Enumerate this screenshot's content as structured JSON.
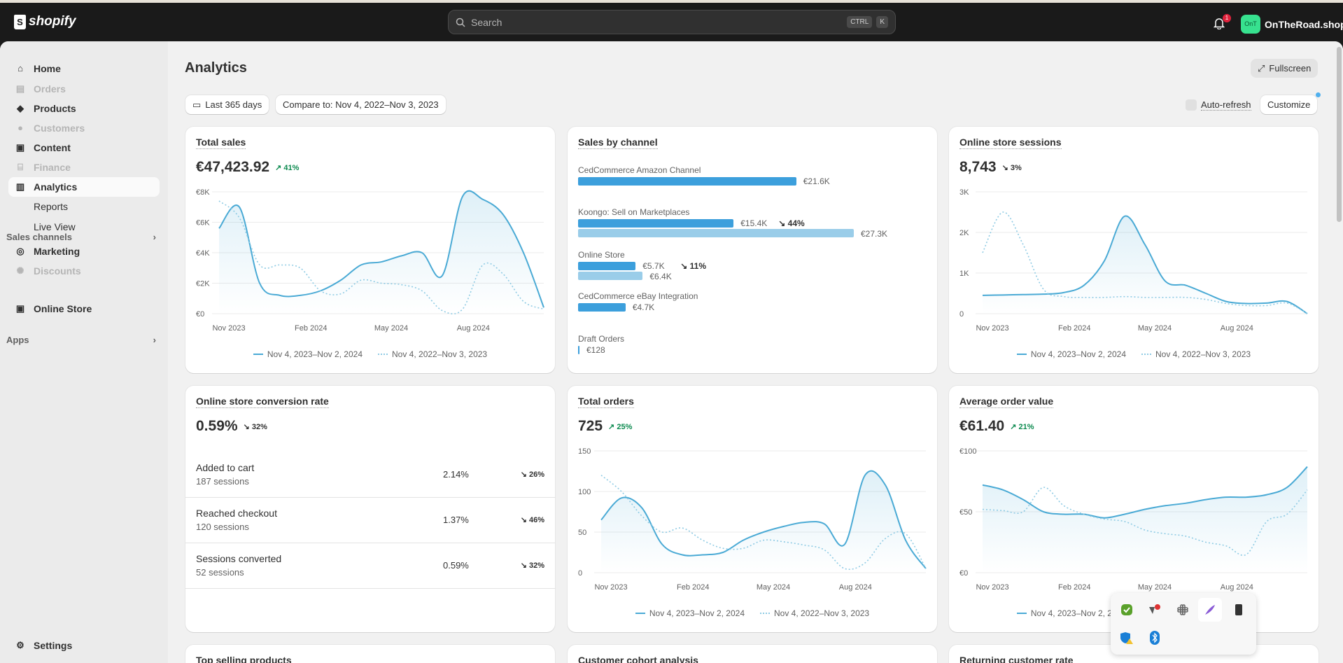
{
  "topbar": {
    "brand": "shopify",
    "search_placeholder": "Search",
    "kbd": [
      "CTRL",
      "K"
    ],
    "notifications": "1",
    "store_initials": "OnT",
    "store_name": "OnTheRoad.shop"
  },
  "sidebar": {
    "items": [
      {
        "label": "Home",
        "icon": "home-icon",
        "disabled": false
      },
      {
        "label": "Orders",
        "icon": "inbox-icon",
        "disabled": true
      },
      {
        "label": "Products",
        "icon": "tag-icon",
        "disabled": false
      },
      {
        "label": "Customers",
        "icon": "person-icon",
        "disabled": true
      },
      {
        "label": "Content",
        "icon": "image-icon",
        "disabled": false
      },
      {
        "label": "Finance",
        "icon": "bank-icon",
        "disabled": true
      },
      {
        "label": "Analytics",
        "icon": "bar-chart-icon",
        "disabled": false,
        "active": true
      },
      {
        "label": "Reports",
        "sub": true
      },
      {
        "label": "Live View",
        "sub": true
      },
      {
        "label": "Marketing",
        "icon": "target-icon",
        "disabled": false
      },
      {
        "label": "Discounts",
        "icon": "discount-icon",
        "disabled": true
      }
    ],
    "sales_channels": "Sales channels",
    "online_store": "Online Store",
    "apps": "Apps",
    "settings": "Settings"
  },
  "header": {
    "title": "Analytics",
    "fullscreen": "Fullscreen",
    "date_range": "Last 365 days",
    "compare": "Compare to: Nov 4, 2022–Nov 3, 2023",
    "auto_refresh": "Auto-refresh",
    "customize": "Customize"
  },
  "legend": {
    "current": "Nov 4, 2023–Nov 2, 2024",
    "previous": "Nov 4, 2022–Nov 3, 2023"
  },
  "cards": {
    "total_sales": {
      "title": "Total sales",
      "value": "€47,423.92",
      "change": "41%",
      "direction": "up"
    },
    "sales_by_channel": {
      "title": "Sales by channel",
      "channels": [
        {
          "name": "CedCommerce Amazon Channel",
          "current": 21.6,
          "current_label": "€21.6K"
        },
        {
          "name": "Koongo: Sell on Marketplaces",
          "current": 15.4,
          "current_label": "€15.4K",
          "change": "44%",
          "previous": 27.3,
          "previous_label": "€27.3K"
        },
        {
          "name": "Online Store",
          "current": 5.7,
          "current_label": "€5.7K",
          "change": "11%",
          "previous": 6.4,
          "previous_label": "€6.4K"
        },
        {
          "name": "CedCommerce eBay Integration",
          "current": 4.7,
          "current_label": "€4.7K"
        },
        {
          "name": "Draft Orders",
          "current": 0.128,
          "current_label": "€128"
        }
      ]
    },
    "sessions": {
      "title": "Online store sessions",
      "value": "8,743",
      "change": "3%",
      "direction": "down"
    },
    "conversion": {
      "title": "Online store conversion rate",
      "value": "0.59%",
      "change": "32%",
      "direction": "down",
      "rows": [
        {
          "name": "Added to cart",
          "sessions": "187 sessions",
          "rate": "2.14%",
          "change": "26%"
        },
        {
          "name": "Reached checkout",
          "sessions": "120 sessions",
          "rate": "1.37%",
          "change": "46%"
        },
        {
          "name": "Sessions converted",
          "sessions": "52 sessions",
          "rate": "0.59%",
          "change": "32%"
        }
      ]
    },
    "orders": {
      "title": "Total orders",
      "value": "725",
      "change": "25%",
      "direction": "up"
    },
    "aov": {
      "title": "Average order value",
      "value": "€61.40",
      "change": "21%",
      "direction": "up"
    },
    "row3": [
      "Top selling products",
      "Customer cohort analysis",
      "Returning customer rate"
    ]
  },
  "chart_data": [
    {
      "id": "total_sales",
      "type": "line",
      "ylim": [
        0,
        8000
      ],
      "yticks": [
        {
          "v": 0,
          "l": "€0"
        },
        {
          "v": 2000,
          "l": "€2K"
        },
        {
          "v": 4000,
          "l": "€4K"
        },
        {
          "v": 6000,
          "l": "€6K"
        },
        {
          "v": 8000,
          "l": "€8K"
        }
      ],
      "x_range": [
        "2023-11-04",
        "2024-11-02"
      ],
      "xticks": [
        {
          "d": "2023-11-15",
          "l": "Nov 2023"
        },
        {
          "d": "2024-02-15",
          "l": "Feb 2024"
        },
        {
          "d": "2024-05-15",
          "l": "May 2024"
        },
        {
          "d": "2024-08-15",
          "l": "Aug 2024"
        }
      ],
      "series": [
        {
          "name": "Nov 4, 2023–Nov 2, 2024",
          "values": [
            5600,
            7000,
            2000,
            1200,
            1200,
            1500,
            2200,
            3200,
            3400,
            3800,
            4000,
            2500,
            7700,
            7500,
            6500,
            4000,
            400
          ]
        },
        {
          "name": "Nov 4, 2022–Nov 3, 2023",
          "values": [
            7400,
            6300,
            3200,
            3200,
            3000,
            1500,
            1300,
            2200,
            2000,
            1900,
            1500,
            200,
            300,
            3200,
            2600,
            800,
            300
          ]
        }
      ]
    },
    {
      "id": "sessions",
      "type": "line",
      "ylim": [
        0,
        3000
      ],
      "yticks": [
        {
          "v": 0,
          "l": "0"
        },
        {
          "v": 1000,
          "l": "1K"
        },
        {
          "v": 2000,
          "l": "2K"
        },
        {
          "v": 3000,
          "l": "3K"
        }
      ],
      "x_range": [
        "2023-11-04",
        "2024-11-02"
      ],
      "xticks": [
        {
          "d": "2023-11-15",
          "l": "Nov 2023"
        },
        {
          "d": "2024-02-15",
          "l": "Feb 2024"
        },
        {
          "d": "2024-05-15",
          "l": "May 2024"
        },
        {
          "d": "2024-08-15",
          "l": "Aug 2024"
        }
      ],
      "series": [
        {
          "name": "Nov 4, 2023–Nov 2, 2024",
          "values": [
            450,
            460,
            470,
            480,
            520,
            700,
            1300,
            2400,
            1700,
            800,
            700,
            500,
            300,
            250,
            260,
            300,
            0
          ]
        },
        {
          "name": "Nov 4, 2022–Nov 3, 2023",
          "values": [
            1500,
            2500,
            1700,
            600,
            420,
            400,
            400,
            420,
            400,
            400,
            400,
            350,
            250,
            200,
            200,
            260,
            0
          ]
        }
      ]
    },
    {
      "id": "orders",
      "type": "line",
      "ylim": [
        0,
        150
      ],
      "yticks": [
        {
          "v": 0,
          "l": "0"
        },
        {
          "v": 50,
          "l": "50"
        },
        {
          "v": 100,
          "l": "100"
        },
        {
          "v": 150,
          "l": "150"
        }
      ],
      "x_range": [
        "2023-11-04",
        "2024-11-02"
      ],
      "xticks": [
        {
          "d": "2023-11-15",
          "l": "Nov 2023"
        },
        {
          "d": "2024-02-15",
          "l": "Feb 2024"
        },
        {
          "d": "2024-05-15",
          "l": "May 2024"
        },
        {
          "d": "2024-08-15",
          "l": "Aug 2024"
        }
      ],
      "series": [
        {
          "name": "Nov 4, 2023–Nov 2, 2024",
          "values": [
            65,
            92,
            80,
            35,
            22,
            22,
            25,
            40,
            50,
            57,
            62,
            60,
            35,
            120,
            108,
            40,
            5
          ]
        },
        {
          "name": "Nov 4, 2022–Nov 3, 2023",
          "values": [
            120,
            100,
            70,
            50,
            55,
            40,
            30,
            30,
            40,
            38,
            34,
            28,
            5,
            12,
            42,
            48,
            5
          ]
        }
      ]
    },
    {
      "id": "aov",
      "type": "line",
      "ylim": [
        0,
        100
      ],
      "yticks": [
        {
          "v": 0,
          "l": "€0"
        },
        {
          "v": 50,
          "l": "€50"
        },
        {
          "v": 100,
          "l": "€100"
        }
      ],
      "x_range": [
        "2023-11-04",
        "2024-11-02"
      ],
      "xticks": [
        {
          "d": "2023-11-15",
          "l": "Nov 2023"
        },
        {
          "d": "2024-02-15",
          "l": "Feb 2024"
        },
        {
          "d": "2024-05-15",
          "l": "May 2024"
        },
        {
          "d": "2024-08-15",
          "l": "Aug 2024"
        }
      ],
      "series": [
        {
          "name": "Nov 4, 2023–Nov 2, 2024",
          "values": [
            72,
            68,
            60,
            50,
            48,
            48,
            45,
            48,
            52,
            55,
            57,
            60,
            62,
            62,
            64,
            70,
            87
          ]
        },
        {
          "name": "Nov 4, 2022–Nov 3, 2023",
          "values": [
            52,
            51,
            50,
            70,
            55,
            48,
            44,
            42,
            35,
            32,
            30,
            25,
            22,
            15,
            42,
            48,
            68
          ]
        }
      ]
    }
  ],
  "tray": {
    "icons": [
      "security-check-icon",
      "vpn-error-icon",
      "slack-icon",
      "feather-icon",
      "printer-icon",
      "defender-warning-icon",
      "bluetooth-icon"
    ]
  },
  "colors": {
    "accent": "#4aaad5",
    "previous": "#8fcbe4",
    "bar": "#3c9fdc",
    "bar_prev": "#9acde9",
    "up": "#0c8a4f"
  }
}
